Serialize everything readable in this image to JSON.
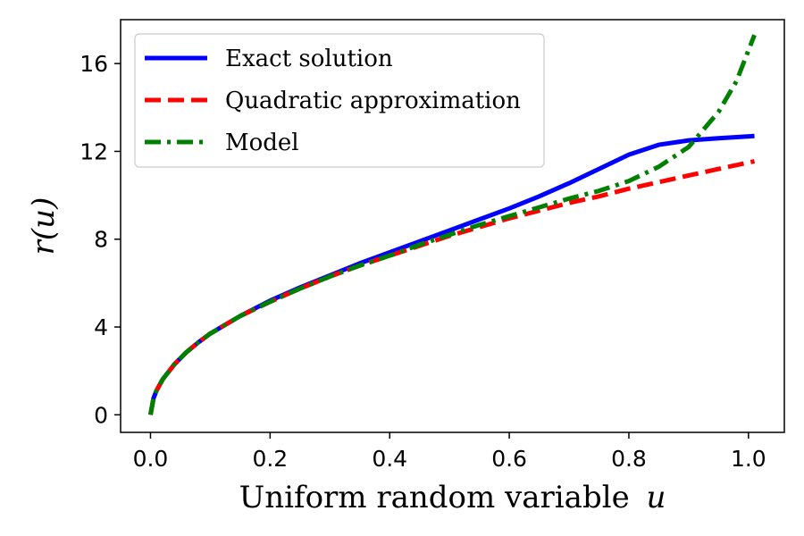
{
  "chart_data": {
    "type": "line",
    "xlabel": "Uniform random variable",
    "xlabel_var": "u",
    "ylabel": "r(u)",
    "xlim": [
      -0.05,
      1.06
    ],
    "ylim": [
      -0.8,
      18
    ],
    "xticks": [
      0.0,
      0.2,
      0.4,
      0.6,
      0.8,
      1.0
    ],
    "xtick_labels": [
      "0.0",
      "0.2",
      "0.4",
      "0.6",
      "0.8",
      "1.0"
    ],
    "yticks": [
      0,
      4,
      8,
      12,
      16
    ],
    "ytick_labels": [
      "0",
      "4",
      "8",
      "12",
      "16"
    ],
    "grid": false,
    "legend_position": "top-left",
    "series": [
      {
        "name": "Exact solution",
        "color": "#0000ff",
        "style": "solid",
        "x": [
          0.0,
          0.005,
          0.01,
          0.02,
          0.04,
          0.06,
          0.08,
          0.1,
          0.15,
          0.2,
          0.25,
          0.3,
          0.35,
          0.4,
          0.45,
          0.5,
          0.55,
          0.6,
          0.65,
          0.7,
          0.75,
          0.8,
          0.85,
          0.9,
          0.95,
          1.01
        ],
        "y": [
          0.0,
          0.75,
          1.1,
          1.6,
          2.3,
          2.85,
          3.3,
          3.7,
          4.5,
          5.2,
          5.8,
          6.35,
          6.9,
          7.4,
          7.9,
          8.4,
          8.9,
          9.4,
          9.95,
          10.55,
          11.2,
          11.85,
          12.3,
          12.5,
          12.6,
          12.7
        ]
      },
      {
        "name": "Quadratic approximation",
        "color": "#ff0000",
        "style": "dashed",
        "x": [
          0.0,
          0.005,
          0.01,
          0.02,
          0.04,
          0.06,
          0.08,
          0.1,
          0.15,
          0.2,
          0.25,
          0.3,
          0.35,
          0.4,
          0.45,
          0.5,
          0.55,
          0.6,
          0.65,
          0.7,
          0.75,
          0.8,
          0.85,
          0.9,
          0.95,
          1.01
        ],
        "y": [
          0.0,
          0.75,
          1.1,
          1.6,
          2.3,
          2.85,
          3.3,
          3.7,
          4.5,
          5.15,
          5.75,
          6.3,
          6.8,
          7.25,
          7.7,
          8.15,
          8.55,
          8.95,
          9.3,
          9.65,
          9.95,
          10.3,
          10.6,
          10.9,
          11.2,
          11.55
        ]
      },
      {
        "name": "Model",
        "color": "#008000",
        "style": "dashdot",
        "x": [
          0.0,
          0.005,
          0.01,
          0.02,
          0.04,
          0.06,
          0.08,
          0.1,
          0.15,
          0.2,
          0.25,
          0.3,
          0.35,
          0.4,
          0.45,
          0.5,
          0.55,
          0.6,
          0.65,
          0.7,
          0.75,
          0.8,
          0.85,
          0.9,
          0.95,
          0.98,
          1.01
        ],
        "y": [
          0.0,
          0.75,
          1.1,
          1.6,
          2.3,
          2.85,
          3.3,
          3.7,
          4.5,
          5.15,
          5.75,
          6.3,
          6.8,
          7.25,
          7.75,
          8.2,
          8.65,
          9.05,
          9.45,
          9.85,
          10.2,
          10.65,
          11.3,
          12.2,
          13.8,
          15.2,
          17.3
        ]
      }
    ]
  }
}
